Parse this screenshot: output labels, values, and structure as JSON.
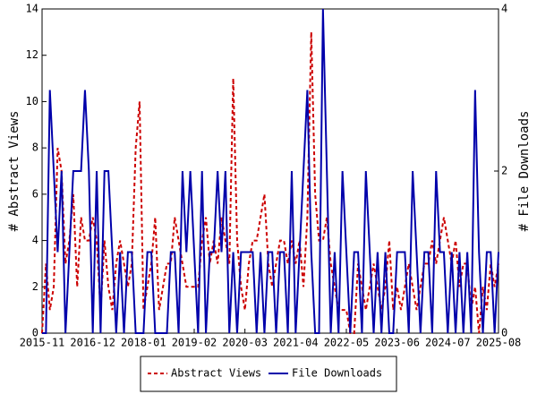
{
  "chart_data": {
    "type": "line",
    "ylabel": "# Abstract Views",
    "y2label": "# File Downloads",
    "x": [
      "2015-11",
      "2015-12",
      "2016-01",
      "2016-02",
      "2016-03",
      "2016-04",
      "2016-05",
      "2016-06",
      "2016-07",
      "2016-08",
      "2016-09",
      "2016-10",
      "2016-11",
      "2016-12",
      "2017-01",
      "2017-02",
      "2017-03",
      "2017-04",
      "2017-05",
      "2017-06",
      "2017-07",
      "2017-08",
      "2017-09",
      "2017-10",
      "2017-11",
      "2017-12",
      "2018-01",
      "2018-02",
      "2018-03",
      "2018-04",
      "2018-05",
      "2018-06",
      "2018-07",
      "2018-08",
      "2018-09",
      "2018-10",
      "2018-11",
      "2018-12",
      "2019-01",
      "2019-02",
      "2019-03",
      "2019-04",
      "2019-05",
      "2019-06",
      "2019-07",
      "2019-08",
      "2019-09",
      "2019-10",
      "2019-11",
      "2019-12",
      "2020-01",
      "2020-02",
      "2020-03",
      "2020-04",
      "2020-05",
      "2020-06",
      "2020-07",
      "2020-08",
      "2020-09",
      "2020-10",
      "2020-11",
      "2020-12",
      "2021-01",
      "2021-02",
      "2021-03",
      "2021-04",
      "2021-05",
      "2021-06",
      "2021-07",
      "2021-08",
      "2021-09",
      "2021-10",
      "2021-11",
      "2021-12",
      "2022-01",
      "2022-02",
      "2022-03",
      "2022-04",
      "2022-05",
      "2022-06",
      "2022-07",
      "2022-08",
      "2022-09",
      "2022-10",
      "2022-11",
      "2022-12",
      "2023-01",
      "2023-02",
      "2023-03",
      "2023-04",
      "2023-05",
      "2023-06",
      "2023-07",
      "2023-08",
      "2023-09",
      "2023-10",
      "2023-11",
      "2023-12",
      "2024-01",
      "2024-02",
      "2024-03",
      "2024-04",
      "2024-05",
      "2024-06",
      "2024-07",
      "2024-08",
      "2024-09",
      "2024-10",
      "2024-11",
      "2024-12",
      "2025-01",
      "2025-02",
      "2025-03",
      "2025-04",
      "2025-05",
      "2025-06",
      "2025-07",
      "2025-08"
    ],
    "xticks": [
      "2015-11",
      "2016-12",
      "2018-01",
      "2019-02",
      "2020-03",
      "2021-04",
      "2022-05",
      "2023-06",
      "2024-07",
      "2025-08"
    ],
    "ylim": [
      0,
      14
    ],
    "yticks": [
      0,
      2,
      4,
      6,
      8,
      10,
      12,
      14
    ],
    "y2lim": [
      0,
      4
    ],
    "y2ticks": [
      0,
      2,
      4
    ],
    "legend": "bottom",
    "series": [
      {
        "name": "Abstract Views",
        "color": "#cc0000",
        "dashed": true,
        "axis": "y",
        "values": [
          0,
          3,
          1,
          2,
          8,
          7,
          3,
          4,
          6,
          2,
          5,
          4,
          4,
          5,
          4,
          1,
          4,
          2,
          1,
          3,
          4,
          3,
          2,
          3,
          8,
          10,
          1,
          2,
          3,
          5,
          1,
          2,
          3,
          3,
          5,
          4,
          3,
          2,
          2,
          2,
          2,
          4,
          5,
          3,
          4,
          3,
          5,
          4,
          3,
          11,
          4,
          2,
          1,
          3,
          4,
          4,
          5,
          6,
          3,
          2,
          3,
          4,
          4,
          3,
          4,
          3,
          4,
          2,
          5,
          13,
          6,
          4,
          4,
          5,
          3,
          2,
          1,
          1,
          1,
          0,
          0,
          3,
          2,
          1,
          2,
          3,
          2,
          1,
          2,
          4,
          1,
          2,
          1,
          2,
          3,
          2,
          1,
          2,
          3,
          3,
          4,
          3,
          4,
          5,
          4,
          3,
          4,
          2,
          3,
          3,
          1,
          2,
          0,
          2,
          1,
          3,
          2,
          3
        ]
      },
      {
        "name": "File Downloads",
        "color": "#0000aa",
        "dashed": false,
        "axis": "y2",
        "values": [
          0,
          0,
          3,
          2,
          1,
          2,
          0,
          1,
          2,
          2,
          2,
          3,
          2,
          0,
          2,
          0,
          2,
          2,
          1,
          0,
          1,
          0,
          1,
          1,
          0,
          0,
          0,
          1,
          1,
          0,
          0,
          0,
          0,
          1,
          1,
          0,
          2,
          1,
          2,
          1,
          0,
          2,
          0,
          1,
          1,
          2,
          1,
          2,
          0,
          1,
          0,
          1,
          1,
          1,
          1,
          0,
          1,
          0,
          1,
          1,
          0,
          1,
          1,
          0,
          2,
          0,
          1,
          2,
          3,
          1,
          0,
          0,
          4,
          2,
          0,
          1,
          0,
          2,
          1,
          0,
          1,
          1,
          0,
          2,
          1,
          0,
          1,
          0,
          1,
          0,
          0,
          1,
          1,
          1,
          0,
          2,
          1,
          0,
          1,
          1,
          0,
          2,
          1,
          1,
          0,
          1,
          0,
          1,
          0,
          1,
          0,
          3,
          1,
          0,
          1,
          1,
          0,
          1
        ]
      }
    ]
  }
}
